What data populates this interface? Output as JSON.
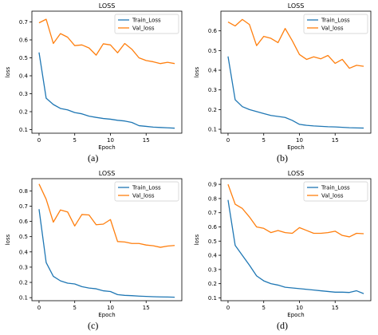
{
  "colors": {
    "train": "#1f77b4",
    "val": "#ff7f0e"
  },
  "chart_data": [
    {
      "panel_label": "(a)",
      "type": "line",
      "title": "LOSS",
      "xlabel": "Epoch",
      "ylabel": "loss",
      "x": [
        0,
        1,
        2,
        3,
        4,
        5,
        6,
        7,
        8,
        9,
        10,
        11,
        12,
        13,
        14,
        15,
        16,
        17,
        18,
        19
      ],
      "xlim": [
        -1,
        20
      ],
      "xticks": [
        0,
        5,
        10,
        15
      ],
      "ylim": [
        0.08,
        0.76
      ],
      "yticks": [
        0.1,
        0.2,
        0.3,
        0.4,
        0.5,
        0.6,
        0.7
      ],
      "legend": "top-right",
      "series": [
        {
          "name": "Train_Loss",
          "color": "#1f77b4",
          "values": [
            0.53,
            0.275,
            0.24,
            0.218,
            0.21,
            0.195,
            0.188,
            0.175,
            0.168,
            0.162,
            0.158,
            0.152,
            0.148,
            0.14,
            0.122,
            0.118,
            0.114,
            0.112,
            0.11,
            0.108
          ]
        },
        {
          "name": "Val_loss",
          "color": "#ff7f0e",
          "values": [
            0.695,
            0.715,
            0.58,
            0.635,
            0.615,
            0.568,
            0.572,
            0.555,
            0.515,
            0.578,
            0.572,
            0.528,
            0.58,
            0.548,
            0.5,
            0.485,
            0.478,
            0.468,
            0.475,
            0.468
          ]
        }
      ]
    },
    {
      "panel_label": "(b)",
      "type": "line",
      "title": "LOSS",
      "xlabel": "Epoch",
      "ylabel": "loss",
      "x": [
        0,
        1,
        2,
        3,
        4,
        5,
        6,
        7,
        8,
        9,
        10,
        11,
        12,
        13,
        14,
        15,
        16,
        17,
        18,
        19
      ],
      "xlim": [
        -1,
        20
      ],
      "xticks": [
        0,
        5,
        10,
        15
      ],
      "ylim": [
        0.08,
        0.7
      ],
      "yticks": [
        0.1,
        0.2,
        0.3,
        0.4,
        0.5,
        0.6
      ],
      "legend": "top-right",
      "series": [
        {
          "name": "Train_Loss",
          "color": "#1f77b4",
          "values": [
            0.47,
            0.25,
            0.215,
            0.2,
            0.19,
            0.18,
            0.17,
            0.165,
            0.16,
            0.145,
            0.125,
            0.12,
            0.117,
            0.115,
            0.113,
            0.112,
            0.11,
            0.108,
            0.107,
            0.106
          ]
        },
        {
          "name": "Val_loss",
          "color": "#ff7f0e",
          "values": [
            0.645,
            0.625,
            0.658,
            0.632,
            0.525,
            0.572,
            0.562,
            0.54,
            0.612,
            0.55,
            0.48,
            0.455,
            0.468,
            0.458,
            0.475,
            0.435,
            0.455,
            0.41,
            0.425,
            0.42
          ]
        }
      ]
    },
    {
      "panel_label": "(c)",
      "type": "line",
      "title": "LOSS",
      "xlabel": "Epoch",
      "ylabel": "loss",
      "x": [
        0,
        1,
        2,
        3,
        4,
        5,
        6,
        7,
        8,
        9,
        10,
        11,
        12,
        13,
        14,
        15,
        16,
        17,
        18,
        19
      ],
      "xlim": [
        -1,
        20
      ],
      "xticks": [
        0,
        5,
        10,
        15
      ],
      "ylim": [
        0.08,
        0.88
      ],
      "yticks": [
        0.1,
        0.2,
        0.3,
        0.4,
        0.5,
        0.6,
        0.7,
        0.8
      ],
      "legend": "top-right",
      "series": [
        {
          "name": "Train_Loss",
          "color": "#1f77b4",
          "values": [
            0.68,
            0.33,
            0.24,
            0.21,
            0.195,
            0.19,
            0.172,
            0.163,
            0.158,
            0.145,
            0.14,
            0.12,
            0.115,
            0.113,
            0.11,
            0.108,
            0.106,
            0.105,
            0.104,
            0.103
          ]
        },
        {
          "name": "Val_loss",
          "color": "#ff7f0e",
          "values": [
            0.845,
            0.745,
            0.595,
            0.675,
            0.662,
            0.57,
            0.645,
            0.642,
            0.578,
            0.582,
            0.612,
            0.468,
            0.465,
            0.455,
            0.455,
            0.445,
            0.44,
            0.43,
            0.438,
            0.442
          ]
        }
      ]
    },
    {
      "panel_label": "(d)",
      "type": "line",
      "title": "LOSS",
      "xlabel": "Epoch",
      "ylabel": "loss",
      "x": [
        0,
        1,
        2,
        3,
        4,
        5,
        6,
        7,
        8,
        9,
        10,
        11,
        12,
        13,
        14,
        15,
        16,
        17,
        18,
        19
      ],
      "xlim": [
        -1,
        20
      ],
      "xticks": [
        0,
        5,
        10,
        15
      ],
      "ylim": [
        0.08,
        0.94
      ],
      "yticks": [
        0.1,
        0.2,
        0.3,
        0.4,
        0.5,
        0.6,
        0.7,
        0.8,
        0.9
      ],
      "legend": "top-right",
      "series": [
        {
          "name": "Train_Loss",
          "color": "#1f77b4",
          "values": [
            0.79,
            0.47,
            0.4,
            0.33,
            0.255,
            0.22,
            0.2,
            0.19,
            0.175,
            0.17,
            0.165,
            0.16,
            0.155,
            0.15,
            0.145,
            0.14,
            0.14,
            0.138,
            0.15,
            0.13
          ]
        },
        {
          "name": "Val_loss",
          "color": "#ff7f0e",
          "values": [
            0.9,
            0.76,
            0.73,
            0.67,
            0.6,
            0.59,
            0.56,
            0.575,
            0.56,
            0.555,
            0.595,
            0.575,
            0.555,
            0.555,
            0.56,
            0.57,
            0.54,
            0.53,
            0.555,
            0.552
          ]
        }
      ]
    }
  ]
}
